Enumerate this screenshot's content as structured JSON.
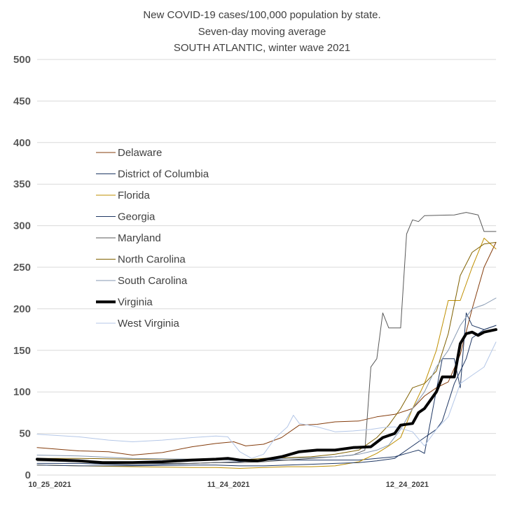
{
  "chart_data": {
    "type": "line",
    "title": [
      "New COVID-19 cases/100,000 population by state.",
      "Seven-day moving average",
      "SOUTH ATLANTIC, winter wave 2021"
    ],
    "xlabel": "",
    "ylabel": "",
    "ylim": [
      0,
      500
    ],
    "yticks": [
      0,
      50,
      100,
      150,
      200,
      250,
      300,
      350,
      400,
      450,
      500
    ],
    "x_start": "2021-10-25",
    "x_end": "2022-01-10",
    "xtick_labels": [
      {
        "date": "2021-10-25",
        "label": "10_25_2021"
      },
      {
        "date": "2021-11-24",
        "label": "11_24_2021"
      },
      {
        "date": "2021-12-24",
        "label": "12_24_2021"
      }
    ],
    "grid": true,
    "legend_position": "upper-left inside plot",
    "series": [
      {
        "name": "Delaware",
        "color": "#843c0c",
        "width": 1,
        "points": [
          [
            "2021-10-25",
            33
          ],
          [
            "2021-11-01",
            29
          ],
          [
            "2021-11-06",
            28
          ],
          [
            "2021-11-10",
            24
          ],
          [
            "2021-11-15",
            27
          ],
          [
            "2021-11-20",
            34
          ],
          [
            "2021-11-24",
            38
          ],
          [
            "2021-11-27",
            40
          ],
          [
            "2021-11-29",
            35
          ],
          [
            "2021-12-02",
            37
          ],
          [
            "2021-12-05",
            45
          ],
          [
            "2021-12-08",
            60
          ],
          [
            "2021-12-11",
            61
          ],
          [
            "2021-12-14",
            64
          ],
          [
            "2021-12-18",
            65
          ],
          [
            "2021-12-21",
            70
          ],
          [
            "2021-12-24",
            73
          ],
          [
            "2021-12-27",
            80
          ],
          [
            "2021-12-29",
            95
          ],
          [
            "2021-12-31",
            105
          ],
          [
            "2022-01-02",
            112
          ],
          [
            "2022-01-04",
            145
          ],
          [
            "2022-01-06",
            200
          ],
          [
            "2022-01-08",
            250
          ],
          [
            "2022-01-10",
            280
          ]
        ]
      },
      {
        "name": "District of Columbia",
        "color": "#1f3864",
        "width": 1,
        "points": [
          [
            "2021-10-25",
            14
          ],
          [
            "2021-11-01",
            14
          ],
          [
            "2021-11-10",
            12
          ],
          [
            "2021-11-20",
            14
          ],
          [
            "2021-11-24",
            15
          ],
          [
            "2021-11-28",
            16
          ],
          [
            "2021-12-02",
            18
          ],
          [
            "2021-12-06",
            18
          ],
          [
            "2021-12-10",
            18
          ],
          [
            "2021-12-14",
            18
          ],
          [
            "2021-12-18",
            18
          ],
          [
            "2021-12-21",
            20
          ],
          [
            "2021-12-24",
            22
          ],
          [
            "2021-12-27",
            28
          ],
          [
            "2021-12-28",
            30
          ],
          [
            "2021-12-29",
            26
          ],
          [
            "2022-01-01",
            140
          ],
          [
            "2022-01-03",
            140
          ],
          [
            "2022-01-04",
            105
          ],
          [
            "2022-01-05",
            195
          ],
          [
            "2022-01-06",
            180
          ],
          [
            "2022-01-08",
            175
          ],
          [
            "2022-01-10",
            180
          ]
        ]
      },
      {
        "name": "Florida",
        "color": "#bf8f00",
        "width": 1,
        "points": [
          [
            "2021-10-25",
            12
          ],
          [
            "2021-11-01",
            11
          ],
          [
            "2021-11-10",
            10
          ],
          [
            "2021-11-20",
            9
          ],
          [
            "2021-11-24",
            9
          ],
          [
            "2021-11-28",
            8
          ],
          [
            "2021-12-02",
            9
          ],
          [
            "2021-12-06",
            10
          ],
          [
            "2021-12-10",
            10
          ],
          [
            "2021-12-14",
            11
          ],
          [
            "2021-12-18",
            16
          ],
          [
            "2021-12-21",
            26
          ],
          [
            "2021-12-23",
            35
          ],
          [
            "2021-12-25",
            45
          ],
          [
            "2021-12-27",
            80
          ],
          [
            "2021-12-29",
            110
          ],
          [
            "2021-12-31",
            150
          ],
          [
            "2022-01-02",
            210
          ],
          [
            "2022-01-04",
            210
          ],
          [
            "2022-01-06",
            250
          ],
          [
            "2022-01-08",
            285
          ],
          [
            "2022-01-10",
            272
          ]
        ]
      },
      {
        "name": "Georgia",
        "color": "#203864",
        "width": 1,
        "points": [
          [
            "2021-10-25",
            12
          ],
          [
            "2021-11-01",
            11
          ],
          [
            "2021-11-10",
            11
          ],
          [
            "2021-11-20",
            12
          ],
          [
            "2021-11-24",
            12
          ],
          [
            "2021-11-28",
            11
          ],
          [
            "2021-12-02",
            11
          ],
          [
            "2021-12-06",
            12
          ],
          [
            "2021-12-10",
            13
          ],
          [
            "2021-12-14",
            14
          ],
          [
            "2021-12-18",
            15
          ],
          [
            "2021-12-21",
            17
          ],
          [
            "2021-12-24",
            20
          ],
          [
            "2021-12-27",
            35
          ],
          [
            "2021-12-29",
            45
          ],
          [
            "2021-12-31",
            55
          ],
          [
            "2022-01-01",
            65
          ],
          [
            "2022-01-03",
            110
          ],
          [
            "2022-01-05",
            140
          ],
          [
            "2022-01-06",
            165
          ],
          [
            "2022-01-08",
            175
          ],
          [
            "2022-01-10",
            180
          ]
        ]
      },
      {
        "name": "Maryland",
        "color": "#595959",
        "width": 1,
        "points": [
          [
            "2021-10-25",
            17
          ],
          [
            "2021-11-01",
            16
          ],
          [
            "2021-11-10",
            14
          ],
          [
            "2021-11-20",
            14
          ],
          [
            "2021-11-24",
            15
          ],
          [
            "2021-11-28",
            15
          ],
          [
            "2021-12-02",
            16
          ],
          [
            "2021-12-06",
            18
          ],
          [
            "2021-12-10",
            20
          ],
          [
            "2021-12-14",
            22
          ],
          [
            "2021-12-17",
            24
          ],
          [
            "2021-12-19",
            30
          ],
          [
            "2021-12-20",
            130
          ],
          [
            "2021-12-21",
            140
          ],
          [
            "2021-12-22",
            195
          ],
          [
            "2021-12-23",
            177
          ],
          [
            "2021-12-25",
            177
          ],
          [
            "2021-12-26",
            290
          ],
          [
            "2021-12-27",
            307
          ],
          [
            "2021-12-28",
            305
          ],
          [
            "2021-12-29",
            312
          ],
          [
            "2022-01-03",
            313
          ],
          [
            "2022-01-05",
            316
          ],
          [
            "2022-01-07",
            313
          ],
          [
            "2022-01-08",
            293
          ],
          [
            "2022-01-10",
            293
          ]
        ]
      },
      {
        "name": "North Carolina",
        "color": "#7f6000",
        "width": 1,
        "points": [
          [
            "2021-10-25",
            20
          ],
          [
            "2021-11-01",
            20
          ],
          [
            "2021-11-10",
            19
          ],
          [
            "2021-11-20",
            19
          ],
          [
            "2021-11-24",
            20
          ],
          [
            "2021-11-28",
            18
          ],
          [
            "2021-12-02",
            20
          ],
          [
            "2021-12-06",
            21
          ],
          [
            "2021-12-10",
            22
          ],
          [
            "2021-12-14",
            25
          ],
          [
            "2021-12-18",
            30
          ],
          [
            "2021-12-21",
            45
          ],
          [
            "2021-12-23",
            60
          ],
          [
            "2021-12-25",
            80
          ],
          [
            "2021-12-27",
            105
          ],
          [
            "2021-12-29",
            110
          ],
          [
            "2021-12-31",
            125
          ],
          [
            "2022-01-02",
            170
          ],
          [
            "2022-01-04",
            240
          ],
          [
            "2022-01-06",
            268
          ],
          [
            "2022-01-08",
            278
          ],
          [
            "2022-01-10",
            280
          ]
        ]
      },
      {
        "name": "South Carolina",
        "color": "#8497b0",
        "width": 1,
        "points": [
          [
            "2021-10-25",
            24
          ],
          [
            "2021-11-01",
            23
          ],
          [
            "2021-11-10",
            20
          ],
          [
            "2021-11-20",
            19
          ],
          [
            "2021-11-24",
            19
          ],
          [
            "2021-11-28",
            17
          ],
          [
            "2021-12-02",
            18
          ],
          [
            "2021-12-06",
            20
          ],
          [
            "2021-12-10",
            21
          ],
          [
            "2021-12-14",
            22
          ],
          [
            "2021-12-18",
            25
          ],
          [
            "2021-12-21",
            30
          ],
          [
            "2021-12-23",
            36
          ],
          [
            "2021-12-25",
            55
          ],
          [
            "2021-12-27",
            80
          ],
          [
            "2021-12-29",
            100
          ],
          [
            "2021-12-31",
            130
          ],
          [
            "2022-01-02",
            150
          ],
          [
            "2022-01-04",
            180
          ],
          [
            "2022-01-06",
            200
          ],
          [
            "2022-01-08",
            205
          ],
          [
            "2022-01-10",
            213
          ]
        ]
      },
      {
        "name": "Virginia",
        "color": "#000000",
        "width": 4,
        "points": [
          [
            "2021-10-25",
            19
          ],
          [
            "2021-11-01",
            17
          ],
          [
            "2021-11-05",
            15
          ],
          [
            "2021-11-10",
            15
          ],
          [
            "2021-11-15",
            16
          ],
          [
            "2021-11-20",
            18
          ],
          [
            "2021-11-24",
            19
          ],
          [
            "2021-11-26",
            20
          ],
          [
            "2021-11-28",
            18
          ],
          [
            "2021-12-01",
            17
          ],
          [
            "2021-12-05",
            22
          ],
          [
            "2021-12-08",
            28
          ],
          [
            "2021-12-11",
            30
          ],
          [
            "2021-12-14",
            30
          ],
          [
            "2021-12-17",
            33
          ],
          [
            "2021-12-20",
            34
          ],
          [
            "2021-12-22",
            45
          ],
          [
            "2021-12-24",
            50
          ],
          [
            "2021-12-25",
            60
          ],
          [
            "2021-12-27",
            62
          ],
          [
            "2021-12-28",
            75
          ],
          [
            "2021-12-29",
            80
          ],
          [
            "2021-12-31",
            100
          ],
          [
            "2022-01-01",
            118
          ],
          [
            "2022-01-03",
            118
          ],
          [
            "2022-01-04",
            158
          ],
          [
            "2022-01-05",
            170
          ],
          [
            "2022-01-06",
            172
          ],
          [
            "2022-01-07",
            168
          ],
          [
            "2022-01-08",
            172
          ],
          [
            "2022-01-10",
            175
          ]
        ]
      },
      {
        "name": "West Virginia",
        "color": "#b4c7e7",
        "width": 1,
        "points": [
          [
            "2021-10-25",
            49
          ],
          [
            "2021-11-01",
            46
          ],
          [
            "2021-11-06",
            42
          ],
          [
            "2021-11-10",
            40
          ],
          [
            "2021-11-15",
            42
          ],
          [
            "2021-11-20",
            45
          ],
          [
            "2021-11-24",
            47
          ],
          [
            "2021-11-26",
            46
          ],
          [
            "2021-11-28",
            28
          ],
          [
            "2021-11-30",
            20
          ],
          [
            "2021-12-02",
            25
          ],
          [
            "2021-12-04",
            45
          ],
          [
            "2021-12-06",
            58
          ],
          [
            "2021-12-07",
            72
          ],
          [
            "2021-12-08",
            62
          ],
          [
            "2021-12-11",
            58
          ],
          [
            "2021-12-14",
            52
          ],
          [
            "2021-12-17",
            53
          ],
          [
            "2021-12-20",
            55
          ],
          [
            "2021-12-22",
            57
          ],
          [
            "2021-12-24",
            58
          ],
          [
            "2021-12-27",
            52
          ],
          [
            "2021-12-29",
            35
          ],
          [
            "2021-12-31",
            55
          ],
          [
            "2022-01-02",
            70
          ],
          [
            "2022-01-04",
            110
          ],
          [
            "2022-01-06",
            120
          ],
          [
            "2022-01-08",
            130
          ],
          [
            "2022-01-10",
            160
          ]
        ]
      }
    ]
  }
}
